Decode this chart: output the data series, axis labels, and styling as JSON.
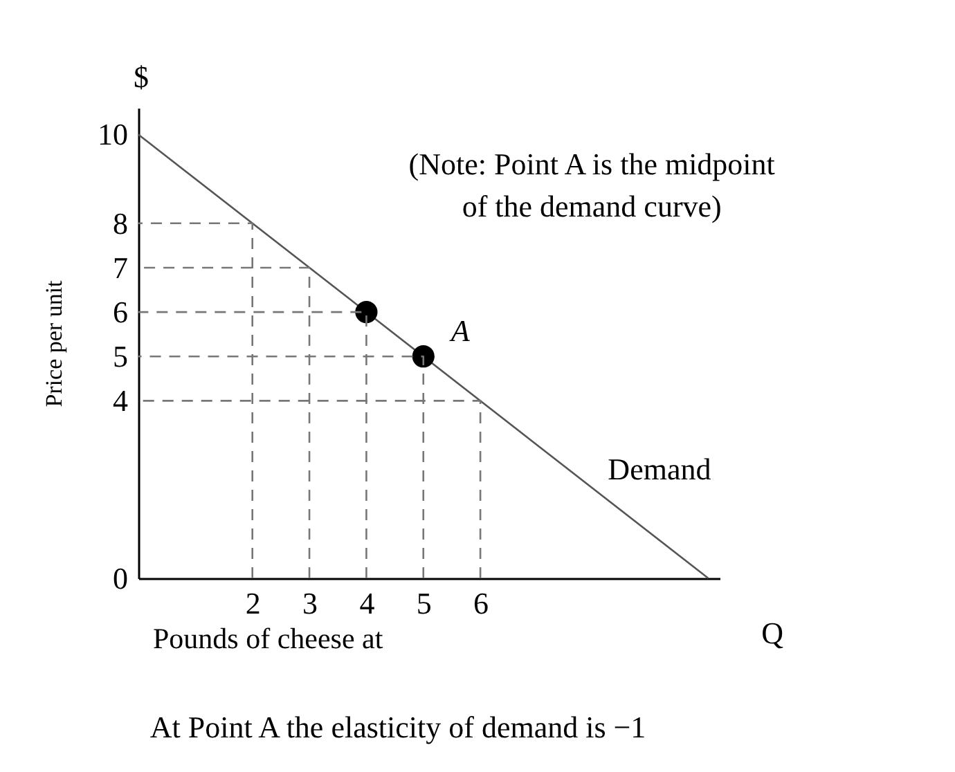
{
  "chart_data": {
    "type": "line",
    "ylabel": "Price per unit",
    "xlabel": "Pounds of cheese at",
    "xlim": [
      0,
      10.2
    ],
    "ylim": [
      0,
      10.6
    ],
    "xticks": [
      2,
      3,
      4,
      5,
      6
    ],
    "yticks": [
      0,
      4,
      5,
      6,
      7,
      8,
      10
    ],
    "grid": false,
    "series": [
      {
        "name": "Demand",
        "color": "#555555",
        "x": [
          0,
          10
        ],
        "values": [
          10,
          0
        ],
        "line_style": "solid"
      },
      {
        "type": "scatter",
        "color": "#000000",
        "marker": "circle",
        "x": [
          4,
          5
        ],
        "values": [
          6,
          5
        ]
      },
      {
        "color": "#777777",
        "line_style": "dashed",
        "x": [
          2,
          2,
          0
        ],
        "values": [
          0,
          8,
          8
        ]
      },
      {
        "color": "#777777",
        "line_style": "dashed",
        "x": [
          3,
          3,
          0
        ],
        "values": [
          0,
          7,
          7
        ]
      },
      {
        "color": "#777777",
        "line_style": "dashed",
        "x": [
          4,
          4,
          0
        ],
        "values": [
          0,
          6,
          6
        ]
      },
      {
        "color": "#777777",
        "line_style": "dashed",
        "x": [
          5,
          5,
          0
        ],
        "values": [
          0,
          5,
          5
        ]
      },
      {
        "color": "#777777",
        "line_style": "dashed",
        "x": [
          6,
          6,
          0
        ],
        "values": [
          0,
          4,
          4
        ]
      }
    ],
    "annotations": [
      "$",
      "Q",
      "(Note: Point A is the midpoint",
      "of the demand curve)",
      "At Point A the elasticity of demand is −1",
      {
        "text": "A",
        "x": 5,
        "y": 5
      }
    ]
  }
}
